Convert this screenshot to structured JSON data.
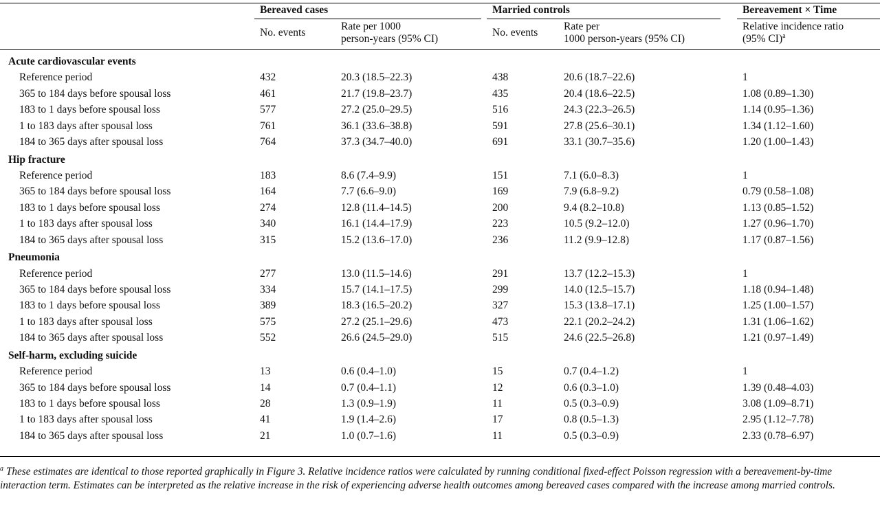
{
  "header": {
    "groups": [
      "Bereaved cases",
      "Married controls",
      "Bereavement × Time"
    ],
    "sub": {
      "no_events": "No. events",
      "rate_cases": [
        "Rate per 1000",
        "person-years (95% CI)"
      ],
      "rate_controls": [
        "Rate per",
        "1000 person-years (95% CI)"
      ],
      "rir": [
        "Relative incidence ratio",
        "(95% CI)"
      ],
      "rir_sup": "a"
    }
  },
  "sections": [
    {
      "title": "Acute cardiovascular events",
      "rows": [
        {
          "period": "Reference period",
          "c_n": "432",
          "c_rate": "20.3 (18.5–22.3)",
          "m_n": "438",
          "m_rate": "20.6 (18.7–22.6)",
          "rir": "1"
        },
        {
          "period": "365 to 184 days before spousal loss",
          "c_n": "461",
          "c_rate": "21.7 (19.8–23.7)",
          "m_n": "435",
          "m_rate": "20.4 (18.6–22.5)",
          "rir": "1.08 (0.89–1.30)"
        },
        {
          "period": "183 to 1 days before spousal loss",
          "c_n": "577",
          "c_rate": "27.2 (25.0–29.5)",
          "m_n": "516",
          "m_rate": "24.3 (22.3–26.5)",
          "rir": "1.14 (0.95–1.36)"
        },
        {
          "period": "1 to 183 days after spousal loss",
          "c_n": "761",
          "c_rate": "36.1 (33.6–38.8)",
          "m_n": "591",
          "m_rate": "27.8 (25.6–30.1)",
          "rir": "1.34 (1.12–1.60)"
        },
        {
          "period": "184 to 365 days after spousal loss",
          "c_n": "764",
          "c_rate": "37.3 (34.7–40.0)",
          "m_n": "691",
          "m_rate": "33.1 (30.7–35.6)",
          "rir": "1.20 (1.00–1.43)"
        }
      ]
    },
    {
      "title": "Hip fracture",
      "rows": [
        {
          "period": "Reference period",
          "c_n": "183",
          "c_rate": "8.6 (7.4–9.9)",
          "m_n": "151",
          "m_rate": "7.1 (6.0–8.3)",
          "rir": "1"
        },
        {
          "period": "365 to 184 days before spousal loss",
          "c_n": "164",
          "c_rate": "7.7 (6.6–9.0)",
          "m_n": "169",
          "m_rate": "7.9 (6.8–9.2)",
          "rir": "0.79 (0.58–1.08)"
        },
        {
          "period": "183 to 1 days before spousal loss",
          "c_n": "274",
          "c_rate": "12.8 (11.4–14.5)",
          "m_n": "200",
          "m_rate": "9.4 (8.2–10.8)",
          "rir": "1.13 (0.85–1.52)"
        },
        {
          "period": "1 to 183 days after spousal loss",
          "c_n": "340",
          "c_rate": "16.1 (14.4–17.9)",
          "m_n": "223",
          "m_rate": "10.5 (9.2–12.0)",
          "rir": "1.27 (0.96–1.70)"
        },
        {
          "period": "184 to 365 days after spousal loss",
          "c_n": "315",
          "c_rate": "15.2 (13.6–17.0)",
          "m_n": "236",
          "m_rate": "11.2 (9.9–12.8)",
          "rir": "1.17 (0.87–1.56)"
        }
      ]
    },
    {
      "title": "Pneumonia",
      "rows": [
        {
          "period": "Reference period",
          "c_n": "277",
          "c_rate": "13.0 (11.5–14.6)",
          "m_n": "291",
          "m_rate": "13.7 (12.2–15.3)",
          "rir": "1"
        },
        {
          "period": "365 to 184 days before spousal loss",
          "c_n": "334",
          "c_rate": "15.7 (14.1–17.5)",
          "m_n": "299",
          "m_rate": "14.0 (12.5–15.7)",
          "rir": "1.18 (0.94–1.48)"
        },
        {
          "period": "183 to 1 days before spousal loss",
          "c_n": "389",
          "c_rate": "18.3 (16.5–20.2)",
          "m_n": "327",
          "m_rate": "15.3 (13.8–17.1)",
          "rir": "1.25 (1.00–1.57)"
        },
        {
          "period": "1 to 183 days after spousal loss",
          "c_n": "575",
          "c_rate": "27.2 (25.1–29.6)",
          "m_n": "473",
          "m_rate": "22.1 (20.2–24.2)",
          "rir": "1.31 (1.06–1.62)"
        },
        {
          "period": "184 to 365 days after spousal loss",
          "c_n": "552",
          "c_rate": "26.6 (24.5–29.0)",
          "m_n": "515",
          "m_rate": "24.6 (22.5–26.8)",
          "rir": "1.21 (0.97–1.49)"
        }
      ]
    },
    {
      "title": "Self-harm, excluding suicide",
      "rows": [
        {
          "period": "Reference period",
          "c_n": "13",
          "c_rate": "0.6 (0.4–1.0)",
          "m_n": "15",
          "m_rate": "0.7 (0.4–1.2)",
          "rir": "1"
        },
        {
          "period": "365 to 184 days before spousal loss",
          "c_n": "14",
          "c_rate": "0.7 (0.4–1.1)",
          "m_n": "12",
          "m_rate": "0.6 (0.3–1.0)",
          "rir": "1.39 (0.48–4.03)"
        },
        {
          "period": "183 to 1 days before spousal loss",
          "c_n": "28",
          "c_rate": "1.3 (0.9–1.9)",
          "m_n": "11",
          "m_rate": "0.5 (0.3–0.9)",
          "rir": "3.08 (1.09–8.71)"
        },
        {
          "period": "1 to 183 days after spousal loss",
          "c_n": "41",
          "c_rate": "1.9 (1.4–2.6)",
          "m_n": "17",
          "m_rate": "0.8 (0.5–1.3)",
          "rir": "2.95 (1.12–7.78)"
        },
        {
          "period": "184 to 365 days after spousal loss",
          "c_n": "21",
          "c_rate": "1.0 (0.7–1.6)",
          "m_n": "11",
          "m_rate": "0.5 (0.3–0.9)",
          "rir": "2.33 (0.78–6.97)"
        }
      ]
    }
  ],
  "footnote": {
    "marker": "a",
    "text": "These estimates are identical to those reported graphically in Figure 3. Relative incidence ratios were calculated by running conditional fixed-effect Poisson regression with a bereavement-by-time interaction term. Estimates can be interpreted as the relative increase in the risk of experiencing adverse health outcomes among bereaved cases compared with the increase among married controls."
  }
}
